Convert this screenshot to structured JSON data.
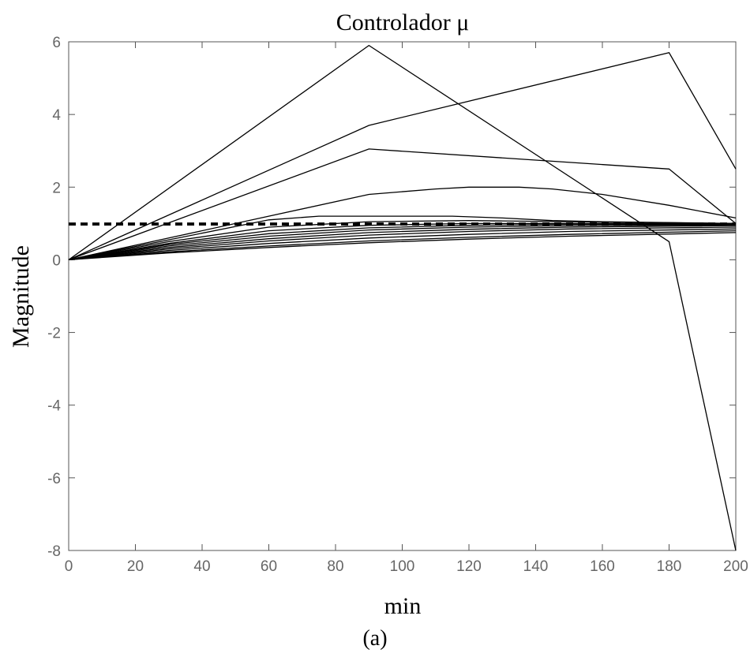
{
  "chart_data": {
    "type": "line",
    "title": "Controlador μ",
    "xlabel": "min",
    "ylabel": "Magnitude",
    "caption": "(a)",
    "xlim": [
      0,
      200
    ],
    "ylim": [
      -8,
      6
    ],
    "xticks": [
      0,
      20,
      40,
      60,
      80,
      100,
      120,
      140,
      160,
      180,
      200
    ],
    "yticks": [
      -8,
      -6,
      -4,
      -2,
      0,
      2,
      4,
      6
    ],
    "grid": false,
    "legend": "none",
    "colors": {
      "line": "#000000",
      "axis": "#555555",
      "tick_label": "#666666"
    },
    "reference_lines": [
      {
        "y": 1.0,
        "style": "dashed"
      },
      {
        "y": 0.97,
        "style": "dashed"
      }
    ],
    "series": [
      {
        "x": [
          0,
          90,
          180,
          200
        ],
        "y": [
          0,
          5.9,
          0.5,
          -8
        ]
      },
      {
        "x": [
          0,
          90,
          180,
          200
        ],
        "y": [
          0,
          3.7,
          5.7,
          2.5
        ]
      },
      {
        "x": [
          0,
          90,
          180,
          200
        ],
        "y": [
          0,
          3.05,
          2.5,
          1.0
        ]
      },
      {
        "x": [
          0,
          30,
          60,
          90,
          110,
          120,
          135,
          145,
          160,
          180,
          200
        ],
        "y": [
          0,
          0.6,
          1.2,
          1.8,
          1.95,
          2.0,
          2.0,
          1.95,
          1.8,
          1.5,
          1.15
        ]
      },
      {
        "x": [
          0,
          30,
          60,
          75,
          90,
          115,
          130,
          145,
          160,
          200
        ],
        "y": [
          0,
          0.55,
          1.1,
          1.2,
          1.2,
          1.2,
          1.15,
          1.08,
          1.05,
          1.0
        ]
      },
      {
        "x": [
          0,
          30,
          60,
          90,
          120,
          150,
          200
        ],
        "y": [
          0,
          0.5,
          0.9,
          1.05,
          1.08,
          1.05,
          1.0
        ]
      },
      {
        "x": [
          0,
          30,
          60,
          90,
          120,
          150,
          200
        ],
        "y": [
          0,
          0.45,
          0.8,
          0.95,
          1.0,
          1.0,
          1.0
        ]
      },
      {
        "x": [
          0,
          30,
          60,
          90,
          120,
          150,
          200
        ],
        "y": [
          0,
          0.42,
          0.72,
          0.88,
          0.95,
          0.98,
          0.98
        ]
      },
      {
        "x": [
          0,
          30,
          60,
          90,
          120,
          150,
          200
        ],
        "y": [
          0,
          0.38,
          0.65,
          0.82,
          0.9,
          0.94,
          0.96
        ]
      },
      {
        "x": [
          0,
          30,
          60,
          90,
          120,
          150,
          200
        ],
        "y": [
          0,
          0.34,
          0.58,
          0.75,
          0.84,
          0.9,
          0.94
        ]
      },
      {
        "x": [
          0,
          30,
          60,
          90,
          120,
          150,
          200
        ],
        "y": [
          0,
          0.3,
          0.52,
          0.68,
          0.78,
          0.85,
          0.9
        ]
      },
      {
        "x": [
          0,
          30,
          60,
          90,
          120,
          150,
          200
        ],
        "y": [
          0,
          0.26,
          0.45,
          0.6,
          0.7,
          0.78,
          0.85
        ]
      },
      {
        "x": [
          0,
          30,
          60,
          90,
          120,
          150,
          200
        ],
        "y": [
          0,
          0.22,
          0.38,
          0.52,
          0.62,
          0.7,
          0.8
        ]
      },
      {
        "x": [
          0,
          30,
          60,
          90,
          120,
          150,
          200
        ],
        "y": [
          0,
          0.19,
          0.34,
          0.47,
          0.57,
          0.65,
          0.75
        ]
      }
    ]
  }
}
